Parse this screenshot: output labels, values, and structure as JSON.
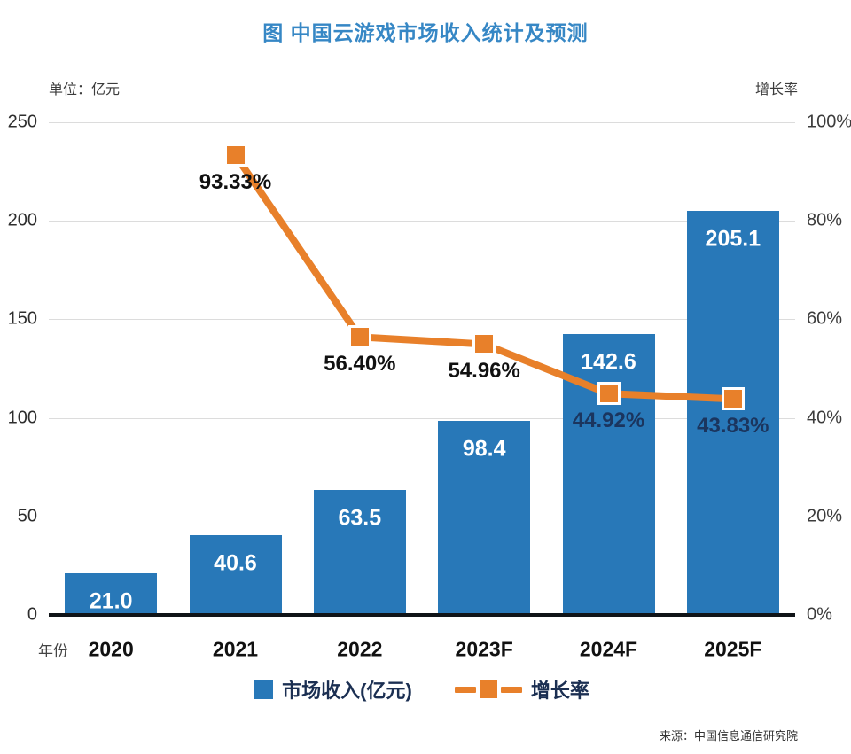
{
  "title": "图  中国云游戏市场收入统计及预测",
  "unit_label": "单位：亿元",
  "right_axis_unit_label": "增长率",
  "x_axis_title": "年份",
  "source": "来源：中国信息通信研究院",
  "legend": {
    "bar_label": "市场收入(亿元)",
    "line_label": "增长率"
  },
  "colors": {
    "bar": "#2878b8",
    "line": "#e8802a",
    "title": "#3687c5",
    "label_black": "#111111",
    "label_on_bar": "#1b355e",
    "grid": "#dcdcdc",
    "axis_line": "#101418"
  },
  "chart_data": {
    "type": "bar+line combo",
    "categories": [
      "2020",
      "2021",
      "2022",
      "2023F",
      "2024F",
      "2025F"
    ],
    "series": [
      {
        "name": "市场收入(亿元)",
        "type": "bar",
        "axis": "left",
        "values": [
          21.0,
          40.6,
          63.5,
          98.4,
          142.6,
          205.1
        ],
        "value_labels": [
          "21.0",
          "40.6",
          "63.5",
          "98.4",
          "142.6",
          "205.1"
        ]
      },
      {
        "name": "增长率",
        "type": "line",
        "axis": "right",
        "values": [
          null,
          93.33,
          56.4,
          54.96,
          44.92,
          43.83
        ],
        "value_labels": [
          null,
          "93.33%",
          "56.40%",
          "54.96%",
          "44.92%",
          "43.83%"
        ]
      }
    ],
    "left_axis": {
      "title": "单位：亿元",
      "min": 0,
      "max": 250,
      "tick_step": 50,
      "ticks": [
        "0",
        "50",
        "100",
        "150",
        "200",
        "250"
      ]
    },
    "right_axis": {
      "title": "增长率",
      "min": 0,
      "max": 100,
      "tick_step": 20,
      "ticks": [
        "0%",
        "20%",
        "40%",
        "60%",
        "80%",
        "100%"
      ]
    },
    "grid": true,
    "legend_position": "bottom"
  }
}
